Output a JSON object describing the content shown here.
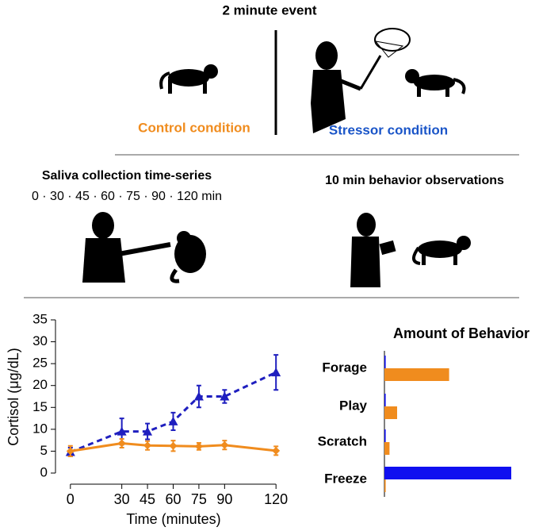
{
  "header": {
    "title": "2 minute event",
    "control": "Control condition",
    "stressor": "Stressor condition"
  },
  "middle": {
    "saliva_title": "Saliva collection time-series",
    "saliva_times": "0 · 30 · 45 · 60 · 75 · 90 · 120 min",
    "behavior_title": "10 min behavior observations"
  },
  "chart_data": [
    {
      "type": "line",
      "x_label": "Time (minutes)",
      "y_label": "Cortisol (μg/dL)",
      "x": [
        0,
        30,
        45,
        60,
        75,
        90,
        120
      ],
      "xlim": [
        -5,
        125
      ],
      "xticks": [
        0,
        30,
        45,
        60,
        75,
        90,
        120
      ],
      "ylim": [
        -1,
        36
      ],
      "yticks": [
        0,
        5,
        10,
        15,
        20,
        25,
        30,
        35
      ],
      "series": [
        {
          "color": "#1f1fbf",
          "dashed": true,
          "marker": "triangle",
          "values": [
            4.8,
            9.5,
            9.5,
            11.8,
            17.5,
            17.5,
            23
          ],
          "errors": [
            1,
            3,
            1.8,
            2,
            2.5,
            1.5,
            4
          ]
        },
        {
          "color": "#f08c1e",
          "dashed": false,
          "marker": "diamond",
          "values": [
            5,
            6.8,
            6.3,
            6.2,
            6.1,
            6.4,
            5.1
          ],
          "errors": [
            1.2,
            1,
            1,
            1.2,
            0.8,
            1,
            1
          ]
        }
      ]
    },
    {
      "type": "barh",
      "title": "Amount of Behavior",
      "categories": [
        "Forage",
        "Play",
        "Scratch",
        "Freeze"
      ],
      "xlim": [
        0,
        100
      ],
      "series": [
        {
          "color": "#1010f0",
          "values": [
            1,
            1,
            1,
            100
          ]
        },
        {
          "color": "#f08c1e",
          "values": [
            51,
            10,
            4,
            1
          ]
        }
      ]
    }
  ]
}
